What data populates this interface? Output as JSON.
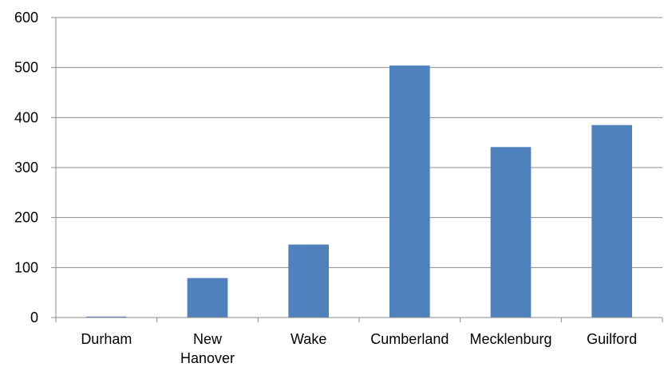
{
  "chart_data": {
    "type": "bar",
    "title": "",
    "xlabel": "",
    "ylabel": "",
    "categories": [
      "Durham",
      "New Hanover",
      "Wake",
      "Cumberland",
      "Mecklenburg",
      "Guilford"
    ],
    "category_lines": [
      [
        "Durham"
      ],
      [
        "New",
        "Hanover"
      ],
      [
        "Wake"
      ],
      [
        "Cumberland"
      ],
      [
        "Mecklenburg"
      ],
      [
        "Guilford"
      ]
    ],
    "values": [
      2,
      79,
      146,
      504,
      341,
      385
    ],
    "ylim": [
      0,
      600
    ],
    "yticks": [
      0,
      100,
      200,
      300,
      400,
      500,
      600
    ],
    "grid": true,
    "legend": "none",
    "bar_color": "#4f81bd"
  }
}
